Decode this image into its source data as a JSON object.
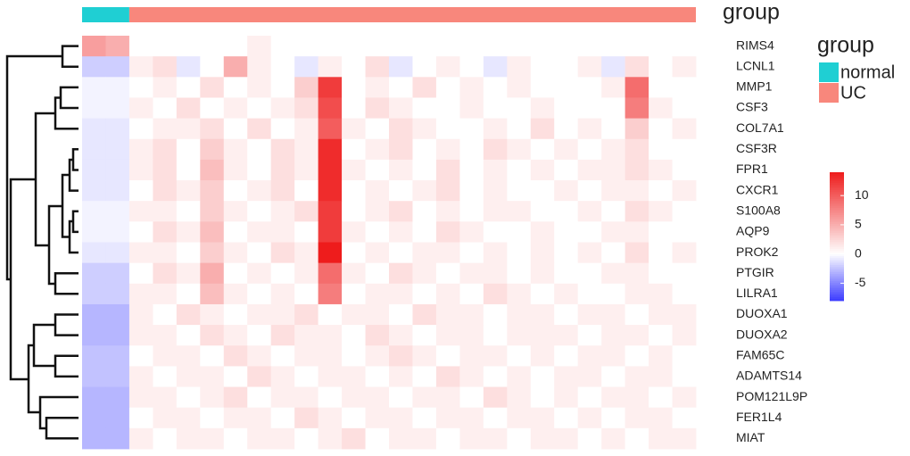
{
  "chart_data": {
    "type": "heatmap",
    "annotation_title": "group",
    "legend_title": "group",
    "groups": [
      {
        "name": "normal",
        "color": "#1fcfd3",
        "n": 2
      },
      {
        "name": "UC",
        "color": "#f8877c",
        "n": 24
      }
    ],
    "rows": [
      "RIMS4",
      "LCNL1",
      "MMP1",
      "CSF3",
      "COL7A1",
      "CSF3R",
      "FPR1",
      "CXCR1",
      "S100A8",
      "AQP9",
      "PROK2",
      "PTGIR",
      "LILRA1",
      "DUOXA1",
      "DUOXA2",
      "FAM65C",
      "ADAMTS14",
      "POM121L9P",
      "FER1L4",
      "MIAT"
    ],
    "matrix": [
      [
        6,
        5,
        0,
        0,
        0,
        0,
        0,
        1,
        0,
        0,
        0,
        0,
        0,
        0,
        0,
        0,
        0,
        0,
        0,
        0,
        0,
        0,
        0,
        0,
        0,
        0
      ],
      [
        -2,
        -2,
        1,
        2,
        -1,
        0,
        5,
        1,
        0,
        -1,
        1,
        0,
        2,
        -1,
        0,
        1,
        0,
        -1,
        1,
        0,
        0,
        1,
        -1,
        2,
        0,
        1
      ],
      [
        -0.5,
        -0.5,
        0,
        1,
        0,
        2,
        0,
        1,
        0,
        3,
        12,
        0,
        1,
        0,
        2,
        0,
        1,
        0,
        1,
        0,
        0,
        0,
        1,
        9,
        0,
        0
      ],
      [
        -0.5,
        -0.5,
        1,
        0,
        2,
        0,
        1,
        0,
        1,
        2,
        11,
        0,
        2,
        1,
        0,
        0,
        1,
        0,
        0,
        1,
        0,
        0,
        0,
        8,
        1,
        0
      ],
      [
        -1,
        -1,
        0,
        1,
        1,
        2,
        0,
        2,
        0,
        1,
        10,
        1,
        0,
        2,
        1,
        0,
        0,
        1,
        0,
        2,
        0,
        1,
        0,
        3,
        0,
        1
      ],
      [
        -1,
        -1,
        1,
        2,
        0,
        3,
        1,
        0,
        2,
        1,
        13,
        0,
        1,
        2,
        0,
        1,
        0,
        2,
        1,
        0,
        1,
        0,
        1,
        2,
        0,
        0
      ],
      [
        -1,
        -1,
        1,
        2,
        0,
        4,
        1,
        0,
        2,
        1,
        13,
        1,
        0,
        1,
        0,
        2,
        0,
        1,
        0,
        1,
        0,
        1,
        1,
        2,
        1,
        0
      ],
      [
        -1,
        -1,
        0,
        2,
        1,
        3,
        0,
        1,
        2,
        0,
        13,
        0,
        1,
        0,
        1,
        2,
        0,
        1,
        0,
        0,
        1,
        0,
        1,
        1,
        0,
        1
      ],
      [
        -0.5,
        -0.5,
        1,
        1,
        0,
        3,
        1,
        0,
        1,
        2,
        12,
        0,
        1,
        2,
        0,
        1,
        0,
        1,
        1,
        0,
        0,
        1,
        0,
        2,
        1,
        0
      ],
      [
        -0.5,
        -0.5,
        0,
        2,
        1,
        4,
        0,
        1,
        1,
        0,
        12,
        1,
        0,
        1,
        0,
        2,
        1,
        0,
        0,
        1,
        0,
        0,
        1,
        1,
        0,
        0
      ],
      [
        -1,
        -1,
        1,
        1,
        0,
        3,
        1,
        0,
        2,
        1,
        14,
        0,
        1,
        0,
        1,
        1,
        0,
        1,
        0,
        1,
        0,
        1,
        0,
        2,
        0,
        1
      ],
      [
        -2,
        -2,
        0,
        2,
        1,
        5,
        0,
        1,
        0,
        1,
        9,
        1,
        0,
        2,
        1,
        0,
        1,
        1,
        0,
        1,
        0,
        0,
        1,
        1,
        0,
        0
      ],
      [
        -2,
        -2,
        1,
        1,
        0,
        4,
        1,
        0,
        1,
        0,
        8,
        0,
        1,
        1,
        0,
        1,
        0,
        2,
        1,
        0,
        1,
        0,
        0,
        1,
        1,
        0
      ],
      [
        -3,
        -3,
        1,
        0,
        2,
        1,
        0,
        1,
        1,
        2,
        0,
        1,
        1,
        0,
        2,
        1,
        1,
        0,
        1,
        1,
        0,
        1,
        1,
        0,
        1,
        1
      ],
      [
        -3,
        -3,
        1,
        1,
        0,
        2,
        1,
        0,
        2,
        1,
        1,
        0,
        2,
        1,
        0,
        1,
        1,
        0,
        1,
        1,
        1,
        0,
        1,
        1,
        0,
        1
      ],
      [
        -2.5,
        -2.5,
        0,
        1,
        1,
        0,
        2,
        1,
        0,
        1,
        1,
        0,
        1,
        2,
        1,
        0,
        1,
        1,
        0,
        1,
        0,
        1,
        1,
        0,
        1,
        0
      ],
      [
        -2.5,
        -2.5,
        1,
        0,
        1,
        1,
        0,
        2,
        1,
        0,
        1,
        1,
        0,
        1,
        0,
        2,
        1,
        0,
        1,
        0,
        1,
        1,
        0,
        1,
        1,
        0
      ],
      [
        -3,
        -3,
        1,
        1,
        0,
        1,
        2,
        0,
        1,
        1,
        0,
        1,
        1,
        0,
        1,
        1,
        0,
        2,
        1,
        0,
        1,
        0,
        1,
        1,
        0,
        1
      ],
      [
        -3,
        -3,
        0,
        1,
        1,
        0,
        1,
        1,
        0,
        2,
        1,
        0,
        1,
        1,
        0,
        1,
        1,
        0,
        1,
        1,
        0,
        1,
        0,
        1,
        1,
        0
      ],
      [
        -3,
        -3,
        1,
        0,
        1,
        1,
        0,
        1,
        1,
        0,
        1,
        2,
        0,
        1,
        1,
        0,
        1,
        1,
        0,
        1,
        1,
        0,
        1,
        0,
        1,
        1
      ]
    ],
    "clim": [
      -8,
      14
    ],
    "cticks": [
      -5,
      0,
      5,
      10
    ],
    "low_color": "#3c3cff",
    "mid_color": "#ffffff",
    "high_color": "#ee1c1c"
  }
}
